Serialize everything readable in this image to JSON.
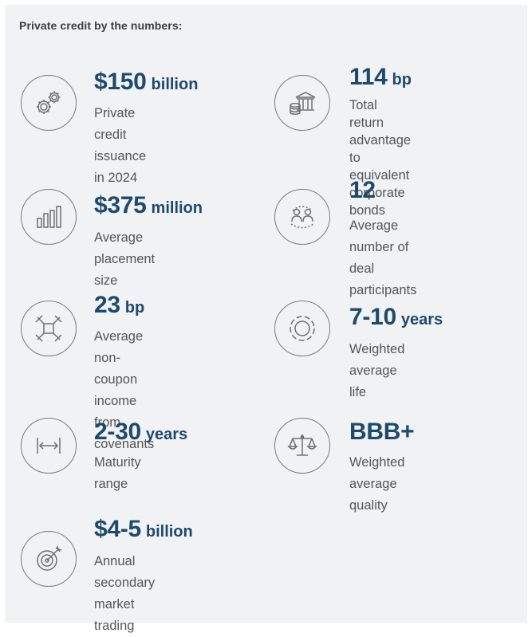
{
  "heading": "Private credit by the numbers:",
  "colors": {
    "accent": "#1e4a6d",
    "text": "#555555",
    "icon": "#7a7a7a",
    "panel": "#f1f2f4"
  },
  "stats": [
    {
      "value": "$150",
      "unit": "billion",
      "desc": "Private credit issuance\nin 2024",
      "icon": "gears-icon"
    },
    {
      "value": "114",
      "unit": "bp",
      "desc": "Total return advantage\nto equivalent corporate\nbonds",
      "icon": "bank-coins-icon"
    },
    {
      "value": "$375",
      "unit": "million",
      "desc": "Average placement size",
      "icon": "bar-chart-icon"
    },
    {
      "value": "12",
      "unit": "",
      "desc": "Average number of\ndeal participants",
      "icon": "people-group-icon"
    },
    {
      "value": "23",
      "unit": "bp",
      "desc": "Average non-coupon\nincome from covenants",
      "icon": "arrows-converge-icon"
    },
    {
      "value": "7-10",
      "unit": "years",
      "desc": "Weighted average life",
      "icon": "target-rings-icon"
    },
    {
      "value": "2-30",
      "unit": "years",
      "desc": "Maturity range",
      "icon": "horizontal-range-icon"
    },
    {
      "value": "BBB+",
      "unit": "",
      "desc": "Weighted average quality",
      "icon": "scales-icon"
    },
    {
      "value": "$4-5",
      "unit": "billion",
      "desc": "Annual secondary\nmarket trading",
      "icon": "bullseye-arrow-icon"
    }
  ]
}
